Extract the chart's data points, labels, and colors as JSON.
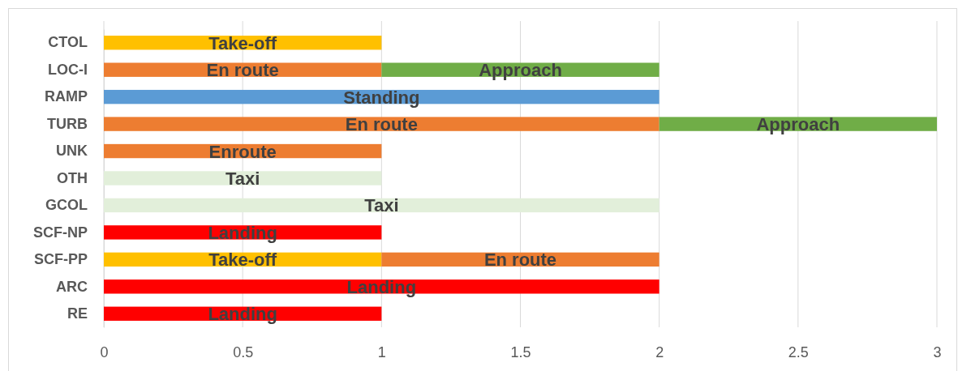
{
  "chart_data": {
    "type": "bar",
    "orientation": "horizontal",
    "stacked": true,
    "categories": [
      "CTOL",
      "LOC-I",
      "RAMP",
      "TURB",
      "UNK",
      "OTH",
      "GCOL",
      "SCF-NP",
      "SCF-PP",
      "ARC",
      "RE"
    ],
    "series": [
      {
        "name": "Standing",
        "color": "#5b9bd5",
        "values": [
          null,
          null,
          2,
          null,
          null,
          null,
          null,
          null,
          null,
          null,
          null
        ]
      },
      {
        "name": "Taxi",
        "color": "#e2efda",
        "values": [
          null,
          null,
          null,
          null,
          null,
          1,
          2,
          null,
          null,
          null,
          null
        ]
      },
      {
        "name": "Take-off",
        "color": "#ffc000",
        "values": [
          1,
          null,
          null,
          null,
          null,
          null,
          null,
          null,
          1,
          null,
          null
        ]
      },
      {
        "name": "En route",
        "color": "#ed7d31",
        "values": [
          null,
          1,
          null,
          2,
          null,
          null,
          null,
          null,
          1,
          null,
          null
        ]
      },
      {
        "name": "Enroute",
        "color": "#ed7d31",
        "values": [
          null,
          null,
          null,
          null,
          1,
          null,
          null,
          null,
          null,
          null,
          null
        ]
      },
      {
        "name": "Approach",
        "color": "#70ad47",
        "values": [
          null,
          1,
          null,
          1,
          null,
          null,
          null,
          null,
          null,
          null,
          null
        ]
      },
      {
        "name": "Landing",
        "color": "#ff0000",
        "values": [
          null,
          null,
          null,
          null,
          null,
          null,
          null,
          1,
          null,
          2,
          1
        ]
      }
    ],
    "xlim": [
      0,
      3
    ],
    "xticks": [
      0,
      0.5,
      1,
      1.5,
      2,
      2.5,
      3
    ],
    "grid": "x"
  }
}
